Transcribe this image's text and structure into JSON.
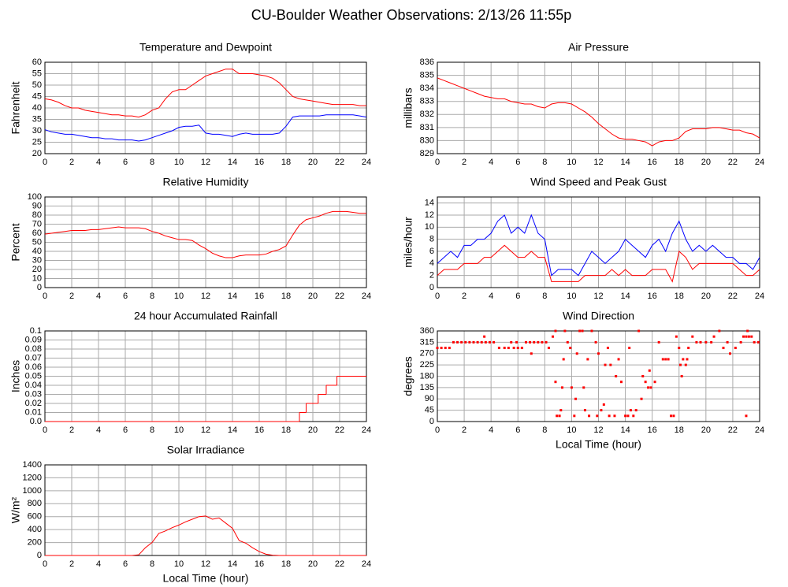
{
  "title": "CU-Boulder Weather Observations: 2/13/26 11:55p",
  "chart_data": [
    {
      "type": "line",
      "title": "Temperature and Dewpoint",
      "ylabel": "Fahrenheit",
      "x": [
        0,
        0.5,
        1,
        1.5,
        2,
        2.5,
        3,
        3.5,
        4,
        4.5,
        5,
        5.5,
        6,
        6.5,
        7,
        7.5,
        8,
        8.5,
        9,
        9.5,
        10,
        10.5,
        11,
        11.5,
        12,
        12.5,
        13,
        13.5,
        14,
        14.5,
        15,
        15.5,
        16,
        16.5,
        17,
        17.5,
        18,
        18.5,
        19,
        19.5,
        20,
        20.5,
        21,
        21.5,
        22,
        22.5,
        23,
        23.5,
        24
      ],
      "series": [
        {
          "color": "#ff0000",
          "values": [
            44,
            43.5,
            42.5,
            41,
            40,
            40,
            39,
            38.5,
            38,
            37.5,
            37,
            37,
            36.5,
            36.5,
            36,
            37,
            39,
            40,
            44,
            47,
            48,
            48,
            50,
            52,
            54,
            55,
            56,
            57,
            57,
            55,
            55,
            55,
            54.5,
            54,
            53,
            51,
            48,
            45,
            44,
            43.5,
            43,
            42.5,
            42,
            41.5,
            41.5,
            41.5,
            41.5,
            41,
            41
          ]
        },
        {
          "color": "#0000ff",
          "values": [
            30.5,
            29.5,
            29,
            28.5,
            28.5,
            28,
            27.5,
            27,
            27,
            26.5,
            26.5,
            26,
            26,
            26,
            25.5,
            26,
            27,
            28,
            29,
            30,
            31.5,
            32,
            32,
            32.5,
            29,
            28.5,
            28.5,
            28,
            27.5,
            28.5,
            29,
            28.5,
            28.5,
            28.5,
            28.5,
            29,
            32,
            36,
            36.5,
            36.5,
            36.5,
            36.5,
            37,
            37,
            37,
            37,
            37,
            36.5,
            36
          ]
        }
      ],
      "xlim": [
        0,
        24
      ],
      "xticks": [
        0,
        2,
        4,
        6,
        8,
        10,
        12,
        14,
        16,
        18,
        20,
        22,
        24
      ],
      "ylim": [
        20,
        60
      ],
      "yticks": [
        20,
        25,
        30,
        35,
        40,
        45,
        50,
        55,
        60
      ],
      "grid": true
    },
    {
      "type": "line",
      "title": "Air Pressure",
      "ylabel": "millibars",
      "x": [
        0,
        0.5,
        1,
        1.5,
        2,
        2.5,
        3,
        3.5,
        4,
        4.5,
        5,
        5.5,
        6,
        6.5,
        7,
        7.5,
        8,
        8.5,
        9,
        9.5,
        10,
        10.5,
        11,
        11.5,
        12,
        12.5,
        13,
        13.5,
        14,
        14.5,
        15,
        15.5,
        16,
        16.5,
        17,
        17.5,
        18,
        18.5,
        19,
        19.5,
        20,
        20.5,
        21,
        21.5,
        22,
        22.5,
        23,
        23.5,
        24
      ],
      "series": [
        {
          "color": "#ff0000",
          "values": [
            834.8,
            834.6,
            834.4,
            834.2,
            834,
            833.8,
            833.6,
            833.4,
            833.3,
            833.2,
            833.2,
            833,
            832.9,
            832.8,
            832.8,
            832.6,
            832.5,
            832.8,
            832.9,
            832.9,
            832.8,
            832.5,
            832.2,
            831.8,
            831.3,
            830.9,
            830.5,
            830.2,
            830.1,
            830.1,
            830,
            829.9,
            829.6,
            829.9,
            830,
            830,
            830.2,
            830.7,
            830.9,
            830.9,
            830.9,
            831,
            831,
            830.9,
            830.8,
            830.8,
            830.6,
            830.5,
            830.2
          ]
        }
      ],
      "xlim": [
        0,
        24
      ],
      "xticks": [
        0,
        2,
        4,
        6,
        8,
        10,
        12,
        14,
        16,
        18,
        20,
        22,
        24
      ],
      "ylim": [
        829,
        836
      ],
      "yticks": [
        829,
        830,
        831,
        832,
        833,
        834,
        835,
        836
      ],
      "grid": true
    },
    {
      "type": "line",
      "title": "Relative Humidity",
      "ylabel": "Percent",
      "x": [
        0,
        0.5,
        1,
        1.5,
        2,
        2.5,
        3,
        3.5,
        4,
        4.5,
        5,
        5.5,
        6,
        6.5,
        7,
        7.5,
        8,
        8.5,
        9,
        9.5,
        10,
        10.5,
        11,
        11.5,
        12,
        12.5,
        13,
        13.5,
        14,
        14.5,
        15,
        15.5,
        16,
        16.5,
        17,
        17.5,
        18,
        18.5,
        19,
        19.5,
        20,
        20.5,
        21,
        21.5,
        22,
        22.5,
        23,
        23.5,
        24
      ],
      "series": [
        {
          "color": "#ff0000",
          "values": [
            59,
            60,
            61,
            62,
            63,
            63,
            63,
            64,
            64,
            65,
            66,
            67,
            66,
            66,
            66,
            65,
            62,
            60,
            57,
            55,
            53,
            53,
            52,
            47,
            43,
            38,
            35,
            33,
            33,
            35,
            36,
            36,
            36,
            37,
            40,
            42,
            46,
            58,
            69,
            75,
            77,
            79,
            82,
            84,
            84,
            84,
            83,
            82,
            82
          ]
        }
      ],
      "xlim": [
        0,
        24
      ],
      "xticks": [
        0,
        2,
        4,
        6,
        8,
        10,
        12,
        14,
        16,
        18,
        20,
        22,
        24
      ],
      "ylim": [
        0,
        100
      ],
      "yticks": [
        0,
        10,
        20,
        30,
        40,
        50,
        60,
        70,
        80,
        90,
        100
      ],
      "grid": true
    },
    {
      "type": "line",
      "title": "Wind Speed and Peak Gust",
      "ylabel": "miles/hour",
      "x": [
        0,
        0.5,
        1,
        1.5,
        2,
        2.5,
        3,
        3.5,
        4,
        4.5,
        5,
        5.5,
        6,
        6.5,
        7,
        7.5,
        8,
        8.5,
        9,
        9.5,
        10,
        10.5,
        11,
        11.5,
        12,
        12.5,
        13,
        13.5,
        14,
        14.5,
        15,
        15.5,
        16,
        16.5,
        17,
        17.5,
        18,
        18.5,
        19,
        19.5,
        20,
        20.5,
        21,
        21.5,
        22,
        22.5,
        23,
        23.5,
        24
      ],
      "series": [
        {
          "color": "#0000ff",
          "values": [
            4,
            5,
            6,
            5,
            7,
            7,
            8,
            8,
            9,
            11,
            12,
            9,
            10,
            9,
            12,
            9,
            8,
            2,
            3,
            3,
            3,
            2,
            4,
            6,
            5,
            4,
            5,
            6,
            8,
            7,
            6,
            5,
            7,
            8,
            6,
            9,
            11,
            8,
            6,
            7,
            6,
            7,
            6,
            5,
            5,
            4,
            4,
            3,
            5
          ]
        },
        {
          "color": "#ff0000",
          "values": [
            2,
            3,
            3,
            3,
            4,
            4,
            4,
            5,
            5,
            6,
            7,
            6,
            5,
            5,
            6,
            5,
            5,
            1,
            1,
            1,
            1,
            1,
            2,
            2,
            2,
            2,
            3,
            2,
            3,
            2,
            2,
            2,
            3,
            3,
            3,
            1,
            6,
            5,
            3,
            4,
            4,
            4,
            4,
            4,
            4,
            3,
            2,
            2,
            3
          ]
        }
      ],
      "xlim": [
        0,
        24
      ],
      "xticks": [
        0,
        2,
        4,
        6,
        8,
        10,
        12,
        14,
        16,
        18,
        20,
        22,
        24
      ],
      "ylim": [
        0,
        15
      ],
      "yticks": [
        0,
        2,
        4,
        6,
        8,
        10,
        12,
        14
      ],
      "grid": true
    },
    {
      "type": "line",
      "title": "24 hour Accumulated Rainfall",
      "ylabel": "Inches",
      "step": true,
      "x": [
        0,
        19,
        19.5,
        20.4,
        21,
        21.8
      ],
      "series": [
        {
          "color": "#ff0000",
          "values": [
            0,
            0.01,
            0.02,
            0.03,
            0.04,
            0.05
          ]
        }
      ],
      "xlim": [
        0,
        24
      ],
      "xticks": [
        0,
        2,
        4,
        6,
        8,
        10,
        12,
        14,
        16,
        18,
        20,
        22,
        24
      ],
      "ylim": [
        0,
        0.1
      ],
      "yticks": [
        {
          "value": 0,
          "label": "0.0"
        },
        0.01,
        0.02,
        0.03,
        0.04,
        0.05,
        0.06,
        0.07,
        0.08,
        0.09,
        0.1
      ],
      "grid": true
    },
    {
      "type": "scatter",
      "title": "Wind Direction",
      "ylabel": "degrees",
      "xlabel": "Local Time (hour)",
      "x": [
        0,
        0.3,
        0.6,
        0.9,
        1.2,
        1.5,
        1.8,
        2.1,
        2.4,
        2.7,
        3,
        3.3,
        3.5,
        3.6,
        3.9,
        4.2,
        4.6,
        5,
        5.3,
        5.5,
        5.7,
        5.9,
        6,
        6.3,
        6.6,
        6.9,
        7,
        7.2,
        7.5,
        7.8,
        8.1,
        8.3,
        8.6,
        8.8,
        8.8,
        8.9,
        9.1,
        9.2,
        9.3,
        9.4,
        9.5,
        9.7,
        9.9,
        10,
        10.2,
        10.3,
        10.4,
        10.6,
        10.8,
        10.9,
        11,
        11.2,
        11.3,
        11.5,
        11.8,
        11.9,
        12,
        12.2,
        12.4,
        12.5,
        12.7,
        12.8,
        12.9,
        13.2,
        13.3,
        13.5,
        13.7,
        14,
        14.2,
        14.3,
        14.4,
        14.6,
        14.8,
        15,
        15.2,
        15.3,
        15.5,
        15.7,
        15.8,
        15.9,
        16.2,
        16.5,
        16.8,
        17,
        17.2,
        17.4,
        17.6,
        17.8,
        18,
        18.1,
        18.2,
        18.3,
        18.5,
        18.6,
        18.7,
        19,
        19.3,
        19.6,
        20,
        20.4,
        20.6,
        21,
        21.3,
        21.6,
        21.8,
        22.2,
        22.6,
        22.8,
        23,
        23,
        23.1,
        23.2,
        23.4,
        23.6,
        23.9
      ],
      "series": [
        {
          "color": "#ff0000",
          "values": [
            292.5,
            292.5,
            292.5,
            292.5,
            315,
            315,
            315,
            315,
            315,
            315,
            315,
            315,
            337.5,
            315,
            315,
            315,
            292.5,
            292.5,
            292.5,
            315,
            292.5,
            315,
            292.5,
            292.5,
            315,
            315,
            270,
            315,
            315,
            315,
            315,
            292.5,
            337.5,
            360,
            157.5,
            22.5,
            22.5,
            45,
            135,
            247.5,
            360,
            315,
            292.5,
            135,
            22.5,
            90,
            270,
            360,
            360,
            135,
            45,
            247.5,
            22.5,
            360,
            315,
            22.5,
            270,
            45,
            67.5,
            225,
            292.5,
            22.5,
            225,
            22.5,
            180,
            247.5,
            157.5,
            22.5,
            22.5,
            292.5,
            45,
            22.5,
            45,
            360,
            90,
            180,
            157.5,
            135,
            202.5,
            135,
            157.5,
            315,
            247.5,
            247.5,
            247.5,
            22.5,
            22.5,
            337.5,
            292.5,
            225,
            180,
            247.5,
            225,
            247.5,
            292.5,
            337.5,
            315,
            315,
            315,
            315,
            337.5,
            360,
            292.5,
            315,
            270,
            292.5,
            315,
            337.5,
            337.5,
            22.5,
            360,
            337.5,
            337.5,
            315,
            315
          ]
        }
      ],
      "xlim": [
        0,
        24
      ],
      "xticks": [
        0,
        2,
        4,
        6,
        8,
        10,
        12,
        14,
        16,
        18,
        20,
        22,
        24
      ],
      "ylim": [
        0,
        360
      ],
      "yticks": [
        0,
        45,
        90,
        135,
        180,
        225,
        270,
        315,
        360
      ],
      "grid": true
    },
    {
      "type": "line",
      "title": "Solar Irradiance",
      "ylabel": "W/m²",
      "xlabel": "Local Time (hour)",
      "x": [
        0,
        0.5,
        1,
        1.5,
        2,
        2.5,
        3,
        3.5,
        4,
        4.5,
        5,
        5.5,
        6,
        6.5,
        7,
        7.5,
        8,
        8.5,
        9,
        9.5,
        10,
        10.5,
        11,
        11.5,
        12,
        12.5,
        13,
        13.5,
        14,
        14.5,
        15,
        15.5,
        16,
        16.5,
        17,
        17.5,
        18,
        18.5,
        19,
        19.5,
        20,
        20.5,
        21,
        21.5,
        22,
        22.5,
        23,
        23.5,
        24
      ],
      "series": [
        {
          "color": "#ff0000",
          "values": [
            0,
            0,
            0,
            0,
            0,
            0,
            0,
            0,
            0,
            0,
            0,
            0,
            0,
            0,
            10,
            120,
            200,
            340,
            380,
            430,
            470,
            520,
            560,
            600,
            610,
            560,
            580,
            500,
            420,
            230,
            190,
            120,
            60,
            20,
            5,
            0,
            0,
            0,
            0,
            0,
            0,
            0,
            0,
            0,
            0,
            0,
            0,
            0,
            0
          ]
        }
      ],
      "xlim": [
        0,
        24
      ],
      "xticks": [
        0,
        2,
        4,
        6,
        8,
        10,
        12,
        14,
        16,
        18,
        20,
        22,
        24
      ],
      "ylim": [
        0,
        1400
      ],
      "yticks": [
        0,
        200,
        400,
        600,
        800,
        1000,
        1200,
        1400
      ],
      "grid": true
    }
  ]
}
